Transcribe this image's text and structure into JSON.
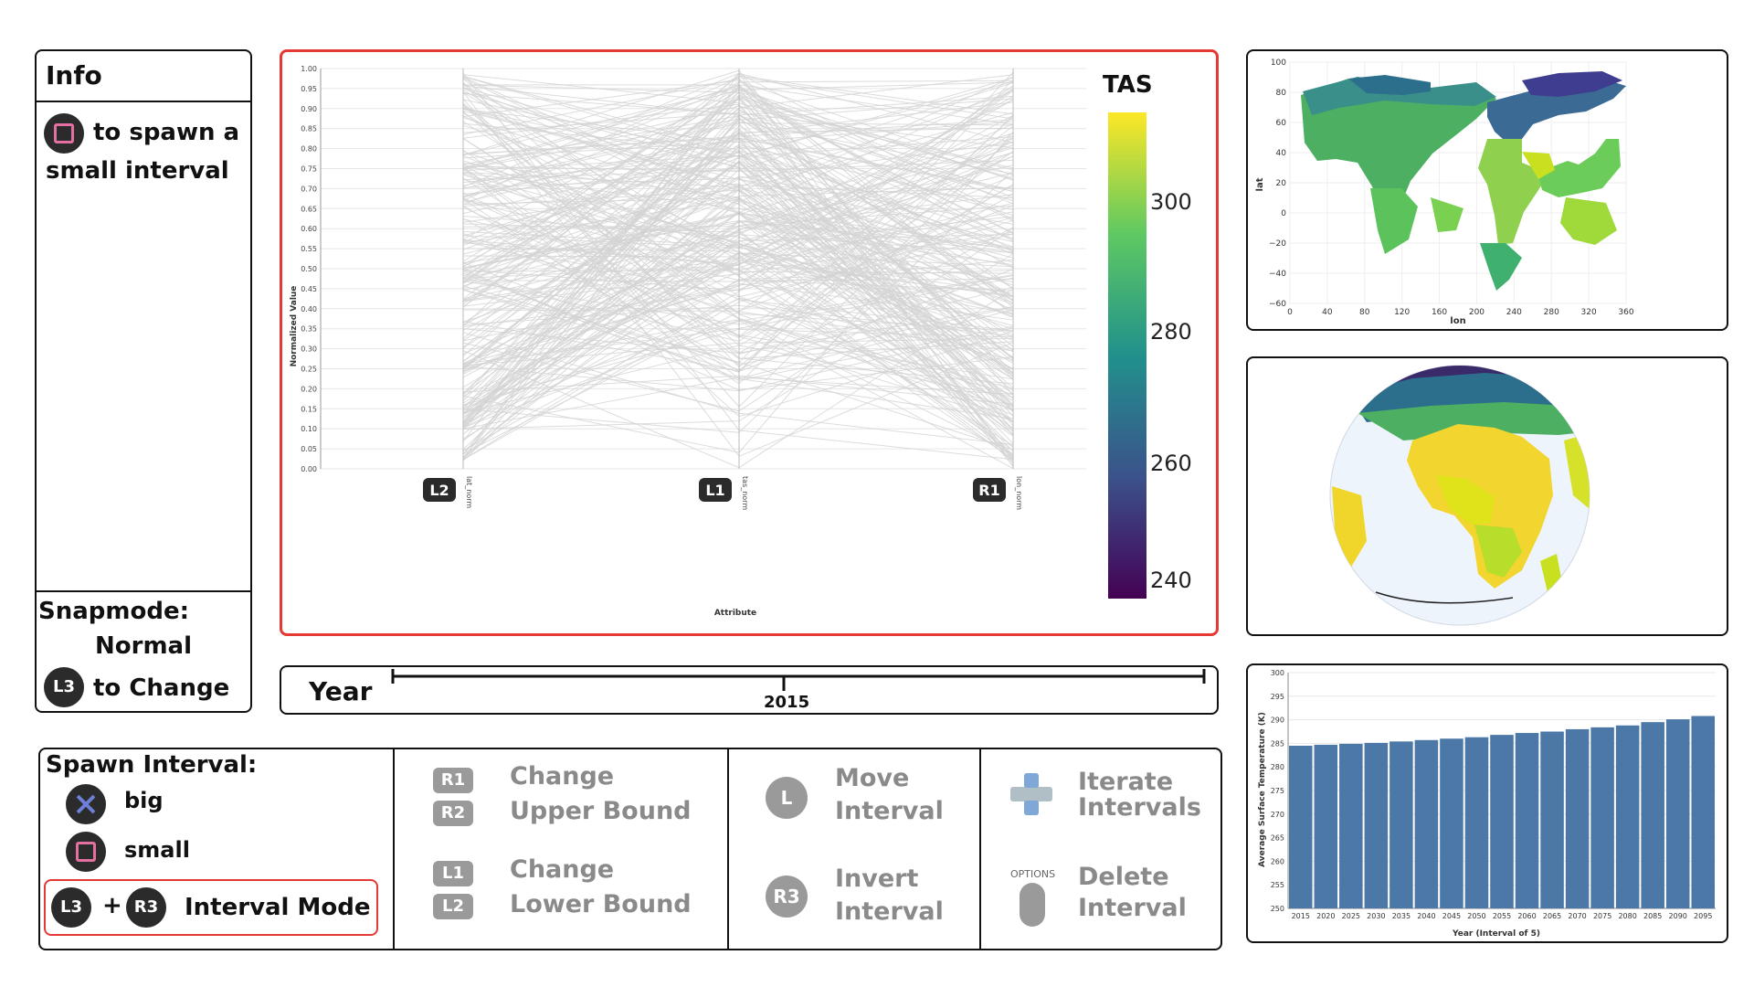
{
  "info": {
    "title": "Info",
    "hint_line1": "to spawn a",
    "hint_line2": "small interval",
    "snapmode_label": "Snapmode:",
    "snapmode_value": "Normal",
    "change_button": "L3",
    "change_text": "to Change"
  },
  "parallel": {
    "y_axis_label": "Normalized Value",
    "x_axis_label": "Attribute",
    "y_ticks": [
      "0.00",
      "0.05",
      "0.10",
      "0.15",
      "0.20",
      "0.25",
      "0.30",
      "0.35",
      "0.40",
      "0.45",
      "0.50",
      "0.55",
      "0.60",
      "0.65",
      "0.70",
      "0.75",
      "0.80",
      "0.85",
      "0.90",
      "0.95",
      "1.00"
    ],
    "axes": [
      {
        "name": "lat_norm",
        "button": "L2"
      },
      {
        "name": "tas_norm",
        "button": "L1"
      },
      {
        "name": "lon_norm",
        "button": "R1"
      }
    ],
    "colorbar": {
      "title": "TAS",
      "ticks": [
        "300",
        "280",
        "260",
        "240"
      ],
      "colors": [
        "#fde725",
        "#5ec962",
        "#21918c",
        "#3b528b",
        "#440154"
      ]
    }
  },
  "year": {
    "label": "Year",
    "value": "2015"
  },
  "controls": {
    "spawn_title": "Spawn Interval:",
    "big": "big",
    "small": "small",
    "mode_l3": "L3",
    "mode_plus": "+",
    "mode_r3": "R3",
    "mode_text": "Interval Mode",
    "upper_keys": [
      "R1",
      "R2"
    ],
    "upper_text1": "Change",
    "upper_text2": "Upper Bound",
    "lower_keys": [
      "L1",
      "L2"
    ],
    "lower_text1": "Change",
    "lower_text2": "Lower Bound",
    "move_key": "L",
    "move_text1": "Move",
    "move_text2": "Interval",
    "invert_key": "R3",
    "invert_text1": "Invert",
    "invert_text2": "Interval",
    "iterate_text1": "Iterate",
    "iterate_text2": "Intervals",
    "options_label": "OPTIONS",
    "delete_text1": "Delete",
    "delete_text2": "Interval"
  },
  "map2d": {
    "x_label": "lon",
    "y_label": "lat",
    "x_ticks": [
      "0",
      "40",
      "80",
      "120",
      "160",
      "200",
      "240",
      "280",
      "320",
      "360"
    ],
    "y_ticks": [
      "100",
      "80",
      "60",
      "40",
      "20",
      "0",
      "−20",
      "−40",
      "−60"
    ]
  },
  "chart_data": {
    "type": "bar",
    "categories": [
      "2015",
      "2020",
      "2025",
      "2030",
      "2035",
      "2040",
      "2045",
      "2050",
      "2055",
      "2060",
      "2065",
      "2070",
      "2075",
      "2080",
      "2085",
      "2090",
      "2095"
    ],
    "values": [
      284.5,
      284.7,
      284.9,
      285.1,
      285.4,
      285.7,
      286.0,
      286.3,
      286.8,
      287.2,
      287.5,
      288.0,
      288.4,
      288.8,
      289.5,
      290.1,
      290.8
    ],
    "xlabel": "Year (Interval of 5)",
    "ylabel": "Average Surface Temperature (K)",
    "ylim": [
      250,
      300
    ],
    "y_ticks": [
      250,
      255,
      260,
      265,
      270,
      275,
      280,
      285,
      290,
      295,
      300
    ],
    "color": "#4c78a8"
  }
}
